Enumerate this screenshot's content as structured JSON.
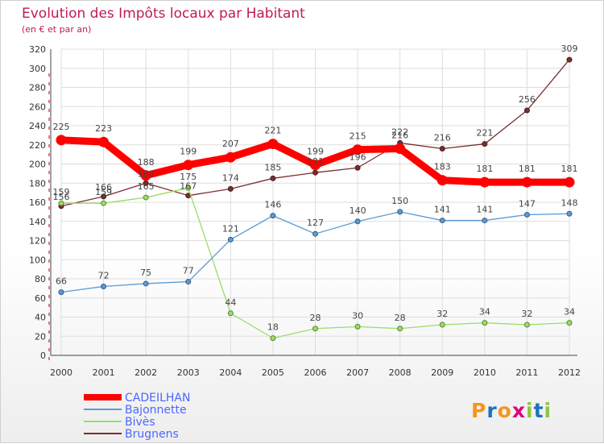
{
  "chart_data": {
    "type": "line",
    "title": "Evolution des Impôts locaux par Habitant",
    "subtitle": "(en € et par an)",
    "xlabel": "",
    "ylabel": "",
    "ylim": [
      0,
      320
    ],
    "ytick_step": 20,
    "grid": true,
    "legend_position": "bottom-left",
    "categories": [
      "2000",
      "2001",
      "2002",
      "2003",
      "2004",
      "2005",
      "2006",
      "2007",
      "2008",
      "2009",
      "2010",
      "2011",
      "2012"
    ],
    "series": [
      {
        "name": "CADEILHAN",
        "color": "#ff0000",
        "values": [
          225,
          223,
          188,
          199,
          207,
          221,
          199,
          215,
          216,
          183,
          181,
          181,
          181
        ]
      },
      {
        "name": "Bajonnette",
        "color": "#5b9bd5",
        "values": [
          66,
          72,
          75,
          77,
          121,
          146,
          127,
          140,
          150,
          141,
          141,
          147,
          148
        ]
      },
      {
        "name": "Bivès",
        "color": "#99dd66",
        "values": [
          159,
          159,
          165,
          175,
          44,
          18,
          28,
          30,
          28,
          32,
          34,
          32,
          34
        ]
      },
      {
        "name": "Brugnens",
        "color": "#7b2e2e",
        "values": [
          156,
          166,
          180,
          167,
          174,
          185,
          191,
          196,
          222,
          216,
          221,
          256,
          309
        ]
      }
    ]
  },
  "logo": {
    "letters": [
      "P",
      "r",
      "o",
      "x",
      "i",
      "t",
      "i"
    ]
  }
}
